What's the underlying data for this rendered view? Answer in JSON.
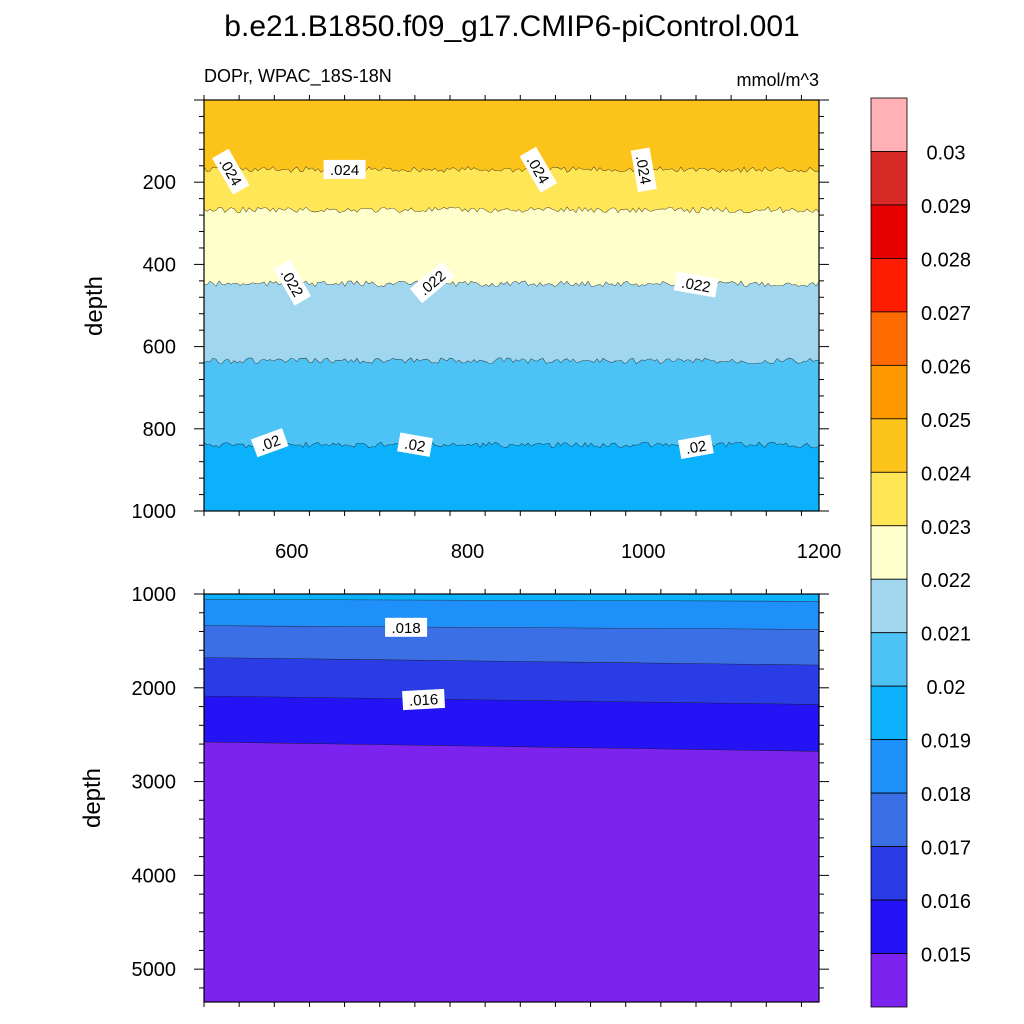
{
  "title": "b.e21.B1850.f09_g17.CMIP6-piControl.001",
  "subtitle_left": "DOPr, WPAC_18S-18N",
  "subtitle_right": "mmol/m^3",
  "chart_data": [
    {
      "type": "contour",
      "panel": "upper",
      "ylabel": "depth",
      "xlabel": "",
      "xlim": [
        500,
        1200
      ],
      "ylim": [
        1000,
        0
      ],
      "x_ticks": [
        600,
        800,
        1000,
        1200
      ],
      "y_ticks": [
        200,
        400,
        600,
        800,
        1000
      ],
      "bands": [
        {
          "from_depth": 0,
          "to_depth": 170,
          "range": [
            0.024,
            0.025
          ],
          "color": "#fcc31a"
        },
        {
          "from_depth": 170,
          "to_depth": 268,
          "range": [
            0.023,
            0.024
          ],
          "color": "#ffe656"
        },
        {
          "from_depth": 268,
          "to_depth": 448,
          "range": [
            0.022,
            0.023
          ],
          "color": "#ffffcc"
        },
        {
          "from_depth": 448,
          "to_depth": 635,
          "range": [
            0.021,
            0.022
          ],
          "color": "#a1d6ef"
        },
        {
          "from_depth": 635,
          "to_depth": 840,
          "range": [
            0.02,
            0.021
          ],
          "color": "#4dc3f5"
        },
        {
          "from_depth": 840,
          "to_depth": 1000,
          "range": [
            0.019,
            0.02
          ],
          "color": "#0bb1fb"
        }
      ],
      "contour_labels": [
        {
          "text": ".024",
          "x": 530,
          "depth": 175,
          "angle": 60
        },
        {
          "text": ".024",
          "x": 660,
          "depth": 170,
          "angle": 0
        },
        {
          "text": ".024",
          "x": 880,
          "depth": 170,
          "angle": 60
        },
        {
          "text": ".024",
          "x": 1000,
          "depth": 170,
          "angle": 80
        },
        {
          "text": ".022",
          "x": 600,
          "depth": 445,
          "angle": 60
        },
        {
          "text": ".022",
          "x": 760,
          "depth": 445,
          "angle": -40
        },
        {
          "text": ".022",
          "x": 1060,
          "depth": 450,
          "angle": 10
        },
        {
          "text": ".02",
          "x": 575,
          "depth": 835,
          "angle": -20
        },
        {
          "text": ".02",
          "x": 740,
          "depth": 840,
          "angle": 10
        },
        {
          "text": ".02",
          "x": 1060,
          "depth": 845,
          "angle": -10
        }
      ]
    },
    {
      "type": "contour",
      "panel": "lower",
      "ylabel": "depth",
      "xlabel": "",
      "xlim": [
        500,
        1200
      ],
      "ylim": [
        5350,
        1000
      ],
      "y_ticks": [
        1000,
        2000,
        3000,
        4000,
        5000
      ],
      "bands": [
        {
          "depth_left_top": 1000,
          "depth_right_top": 1000,
          "depth_left_bottom": 1060,
          "depth_right_bottom": 1080,
          "range": [
            0.019,
            0.02
          ],
          "color": "#0bb1fb"
        },
        {
          "depth_left_top": 1060,
          "depth_right_top": 1080,
          "depth_left_bottom": 1340,
          "depth_right_bottom": 1380,
          "range": [
            0.018,
            0.019
          ],
          "color": "#1f8ffa"
        },
        {
          "depth_left_top": 1340,
          "depth_right_top": 1380,
          "depth_left_bottom": 1680,
          "depth_right_bottom": 1760,
          "range": [
            0.017,
            0.018
          ],
          "color": "#3b6fe6"
        },
        {
          "depth_left_top": 1680,
          "depth_right_top": 1760,
          "depth_left_bottom": 2090,
          "depth_right_bottom": 2180,
          "range": [
            0.016,
            0.017
          ],
          "color": "#2a3ce6"
        },
        {
          "depth_left_top": 2090,
          "depth_right_top": 2180,
          "depth_left_bottom": 2580,
          "depth_right_bottom": 2680,
          "range": [
            0.015,
            0.016
          ],
          "color": "#2414f5"
        },
        {
          "depth_left_top": 2580,
          "depth_right_top": 2680,
          "depth_left_bottom": 5350,
          "depth_right_bottom": 5350,
          "range": [
            0.014,
            0.015
          ],
          "color": "#7d23ef"
        }
      ],
      "contour_labels": [
        {
          "text": ".018",
          "x": 730,
          "depth": 1360,
          "angle": 0
        },
        {
          "text": ".016",
          "x": 750,
          "depth": 2130,
          "angle": -3
        }
      ]
    }
  ],
  "colorbar": {
    "labels": [
      "0.03",
      "0.029",
      "0.028",
      "0.027",
      "0.026",
      "0.025",
      "0.024",
      "0.023",
      "0.022",
      "0.021",
      "0.02",
      "0.019",
      "0.018",
      "0.017",
      "0.016",
      "0.015"
    ],
    "colors": [
      "#ffb1b5",
      "#d72a26",
      "#e60000",
      "#fe1d00",
      "#fe6b00",
      "#fe9800",
      "#fcc31a",
      "#ffe656",
      "#ffffcc",
      "#a1d6ef",
      "#4dc3f5",
      "#0bb1fb",
      "#1f8ffa",
      "#3b6fe6",
      "#2a3ce6",
      "#2414f5",
      "#7d23ef"
    ]
  }
}
